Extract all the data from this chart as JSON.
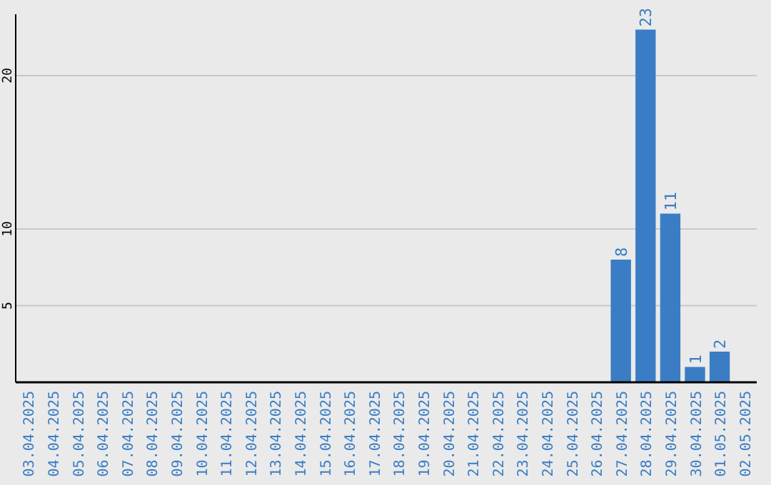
{
  "chart_data": {
    "type": "bar",
    "categories": [
      "03.04.2025",
      "04.04.2025",
      "05.04.2025",
      "06.04.2025",
      "07.04.2025",
      "08.04.2025",
      "09.04.2025",
      "10.04.2025",
      "11.04.2025",
      "12.04.2025",
      "13.04.2025",
      "14.04.2025",
      "15.04.2025",
      "16.04.2025",
      "17.04.2025",
      "18.04.2025",
      "19.04.2025",
      "20.04.2025",
      "21.04.2025",
      "22.04.2025",
      "23.04.2025",
      "24.04.2025",
      "25.04.2025",
      "26.04.2025",
      "27.04.2025",
      "28.04.2025",
      "29.04.2025",
      "30.04.2025",
      "01.05.2025",
      "02.05.2025"
    ],
    "values": [
      0,
      0,
      0,
      0,
      0,
      0,
      0,
      0,
      0,
      0,
      0,
      0,
      0,
      0,
      0,
      0,
      0,
      0,
      0,
      0,
      0,
      0,
      0,
      0,
      8,
      23,
      11,
      1,
      2,
      0
    ],
    "value_labels": [
      null,
      null,
      null,
      null,
      null,
      null,
      null,
      null,
      null,
      null,
      null,
      null,
      null,
      null,
      null,
      null,
      null,
      null,
      null,
      null,
      null,
      null,
      null,
      null,
      "8",
      "23",
      "11",
      "1",
      "2",
      null
    ],
    "color": "#3a7dc4",
    "ylim": [
      0,
      24
    ],
    "yticks": [
      5,
      10,
      20
    ],
    "grid": "y"
  }
}
